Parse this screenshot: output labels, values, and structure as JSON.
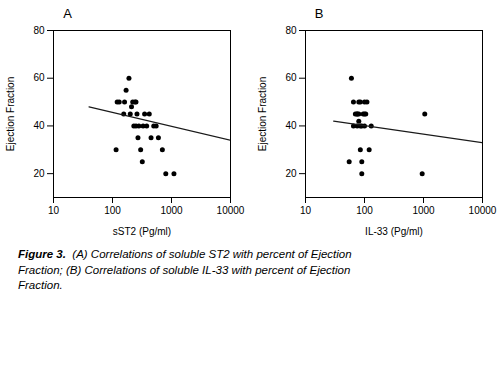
{
  "chart_data": [
    {
      "type": "scatter",
      "title": "A",
      "xlabel": "sST2 (Pg/ml)",
      "ylabel": "Ejection Fraction",
      "log": "x",
      "xlim": [
        10,
        10000
      ],
      "xticks": [
        10,
        100,
        1000,
        10000
      ],
      "ylim": [
        10,
        80
      ],
      "yticks": [
        20,
        40,
        60,
        80
      ],
      "series": [
        {
          "type": "scatter",
          "color": "#000000",
          "x": [
            115,
            120,
            130,
            155,
            160,
            170,
            190,
            200,
            210,
            220,
            230,
            240,
            250,
            250,
            260,
            270,
            280,
            300,
            320,
            330,
            350,
            380,
            420,
            450,
            500,
            550,
            600,
            700,
            800,
            1100
          ],
          "values": [
            30,
            50,
            50,
            45,
            50,
            55,
            60,
            45,
            48,
            50,
            40,
            50,
            50,
            40,
            45,
            35,
            40,
            30,
            25,
            40,
            45,
            40,
            45,
            35,
            40,
            40,
            35,
            30,
            20,
            20
          ]
        },
        {
          "type": "line",
          "color": "#1a1a1a",
          "x": [
            40,
            10000
          ],
          "values": [
            48,
            34
          ]
        }
      ]
    },
    {
      "type": "scatter",
      "title": "B",
      "xlabel": "IL-33 (Pg/ml)",
      "ylabel": "Ejection Fraction",
      "log": "x",
      "xlim": [
        10,
        10000
      ],
      "xticks": [
        10,
        100,
        1000,
        10000
      ],
      "ylim": [
        10,
        80
      ],
      "yticks": [
        20,
        40,
        60,
        80
      ],
      "series": [
        {
          "type": "scatter",
          "color": "#000000",
          "x": [
            55,
            60,
            65,
            65,
            70,
            75,
            75,
            75,
            80,
            80,
            80,
            85,
            85,
            85,
            90,
            90,
            90,
            95,
            100,
            100,
            100,
            105,
            110,
            120,
            130,
            950,
            1050
          ],
          "values": [
            25,
            60,
            40,
            50,
            45,
            45,
            45,
            40,
            50,
            45,
            42,
            50,
            40,
            30,
            40,
            25,
            20,
            45,
            40,
            45,
            50,
            45,
            50,
            30,
            40,
            20,
            45
          ]
        },
        {
          "type": "line",
          "color": "#1a1a1a",
          "x": [
            30,
            10000
          ],
          "values": [
            42,
            33
          ]
        }
      ]
    }
  ],
  "caption": [
    "Figure 3.",
    "  (A) Correlations of soluble ST2 with percent of Ejection\nFraction; (B) Correlations of soluble IL-33 with percent of Ejection\nFraction."
  ]
}
